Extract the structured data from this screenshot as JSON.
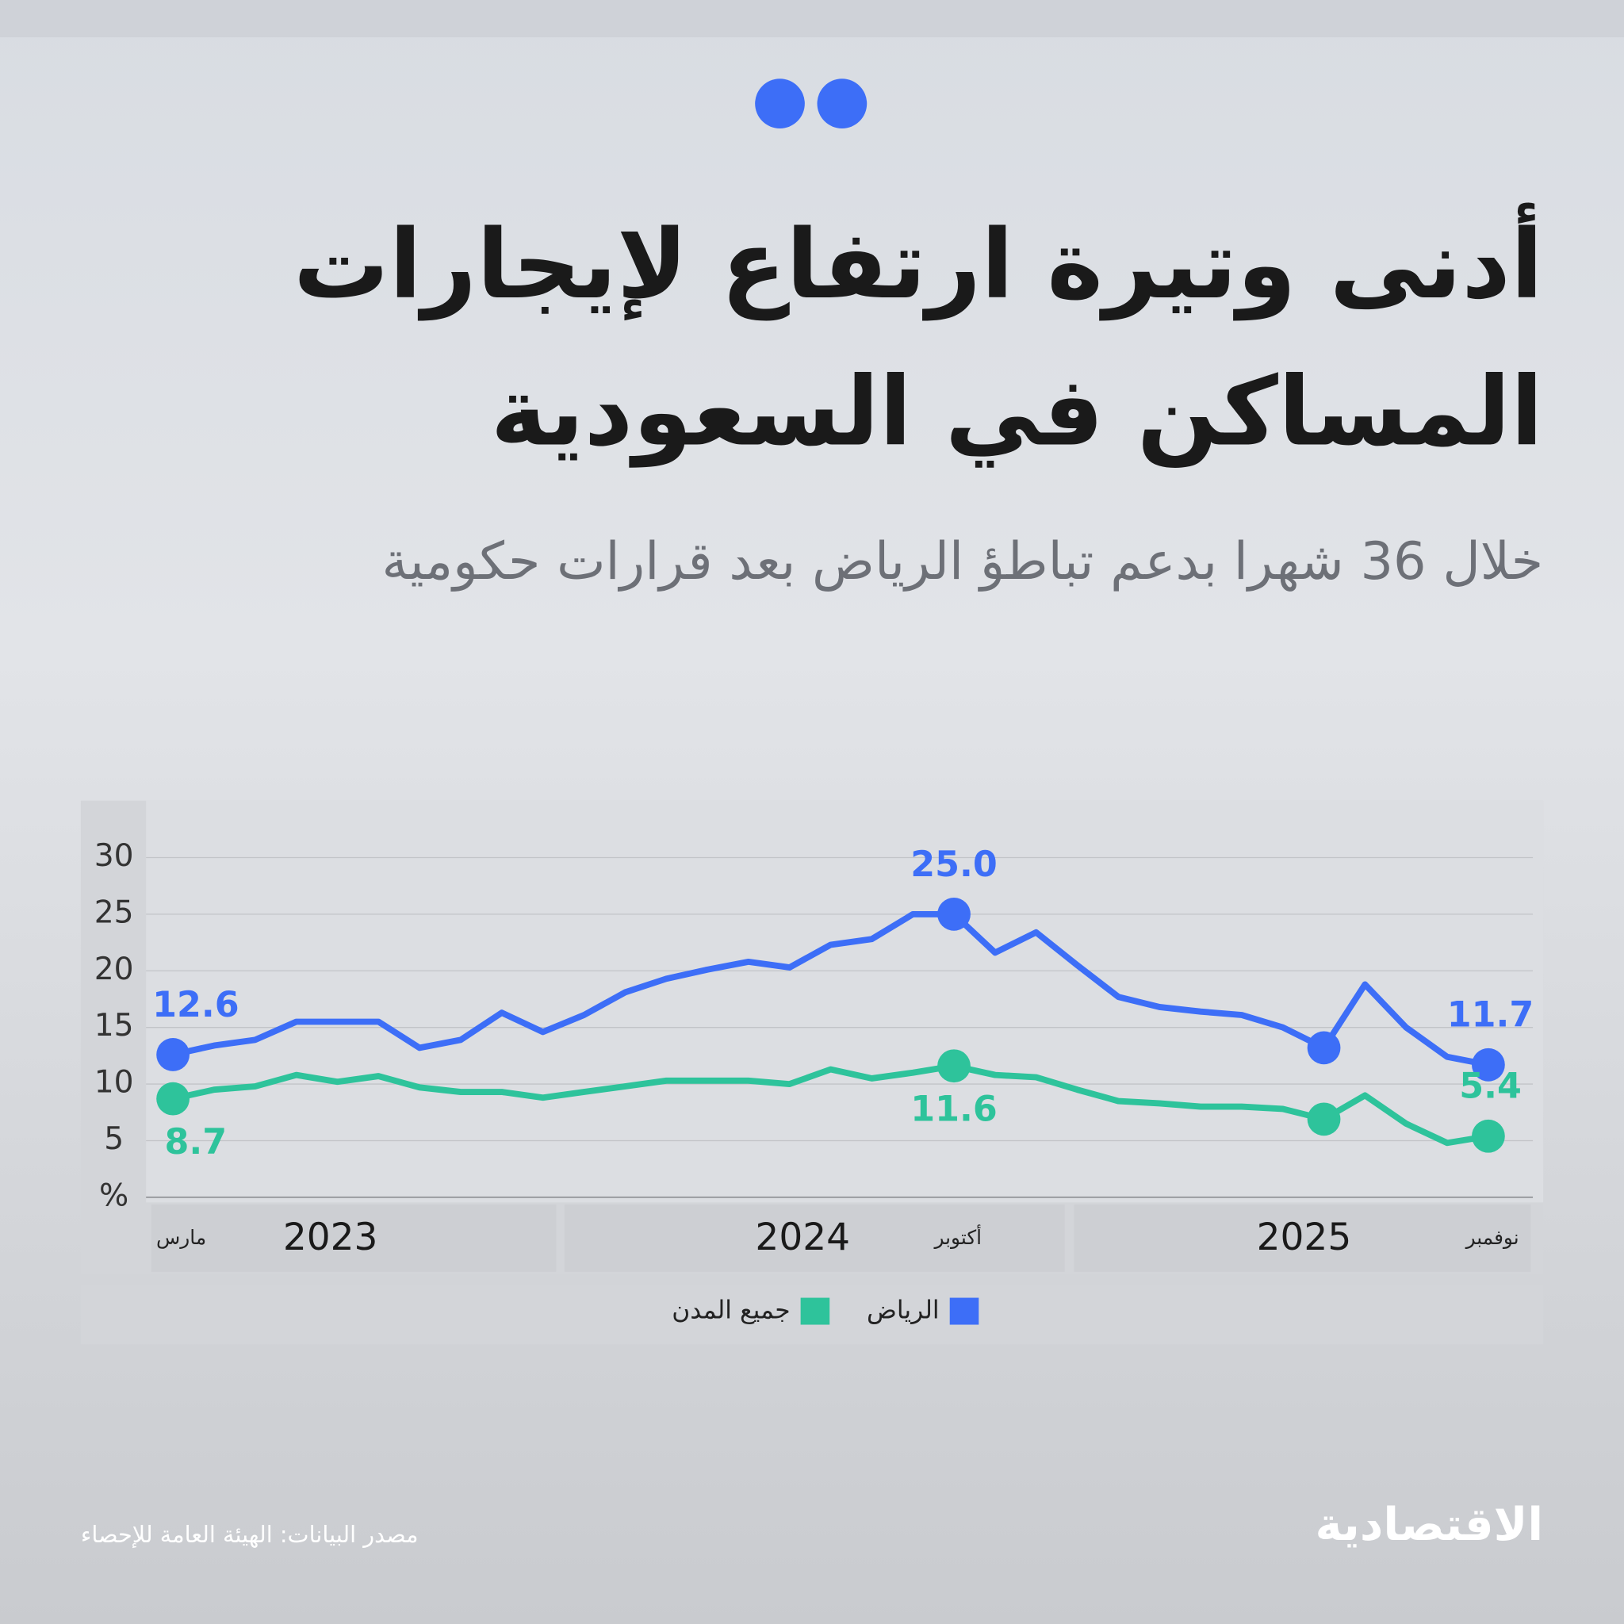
{
  "chart_data": {
    "type": "line",
    "title": [
      "أدنى وتيرة ارتفاع لإيجارات",
      "المساكن في السعودية"
    ],
    "subtitle": "خلال 36 شهرا بدعم تباطؤ الرياض بعد قرارات حكومية",
    "source": "مصدر البيانات: الهيئة العامة للإحصاء",
    "brand": "الاقتصادية",
    "categories": [
      "مارس",
      null,
      null,
      null,
      null,
      null,
      null,
      null,
      null,
      null,
      null,
      null,
      null,
      null,
      null,
      null,
      null,
      null,
      null,
      "أكتوبر",
      null,
      null,
      null,
      null,
      null,
      null,
      null,
      null,
      null,
      null,
      null,
      null,
      "نوفمبر"
    ],
    "year_labels": [
      "2023",
      "2024",
      "2025"
    ],
    "ylim": [
      0,
      30
    ],
    "yticks": [
      {
        "value": 0,
        "label": "%"
      },
      5,
      10,
      15,
      20,
      25,
      30
    ],
    "grid": true,
    "legend": "bottom",
    "series": [
      {
        "name": "الرياض",
        "color": "#3d6ef7",
        "values": [
          12.6,
          13.4,
          13.9,
          15.5,
          15.5,
          15.5,
          13.2,
          13.9,
          16.3,
          14.6,
          16.1,
          18.1,
          19.3,
          20.1,
          20.8,
          20.3,
          22.3,
          22.8,
          25.0,
          25.0,
          21.6,
          23.4,
          20.5,
          17.7,
          16.8,
          16.4,
          16.1,
          15.0,
          13.2,
          18.8,
          15.0,
          12.4,
          11.7
        ],
        "value_labels": [
          "12.6",
          null,
          null,
          null,
          null,
          null,
          null,
          null,
          null,
          null,
          null,
          null,
          null,
          null,
          null,
          null,
          null,
          null,
          null,
          "25.0",
          null,
          null,
          null,
          null,
          null,
          null,
          null,
          null,
          null,
          null,
          null,
          null,
          "11.7"
        ]
      },
      {
        "name": "جميع المدن",
        "color": "#2ec39b",
        "values": [
          8.7,
          9.5,
          9.8,
          10.8,
          10.2,
          10.7,
          9.7,
          9.3,
          9.3,
          8.8,
          9.3,
          9.8,
          10.3,
          10.3,
          10.3,
          10.0,
          11.3,
          10.5,
          11.0,
          11.6,
          10.8,
          10.6,
          9.5,
          8.5,
          8.3,
          8.0,
          8.0,
          7.8,
          6.9,
          9.0,
          6.5,
          4.8,
          5.4
        ],
        "value_labels": [
          "8.7",
          null,
          null,
          null,
          null,
          null,
          null,
          null,
          null,
          null,
          null,
          null,
          null,
          null,
          null,
          null,
          null,
          null,
          null,
          "11.6",
          null,
          null,
          null,
          null,
          null,
          null,
          null,
          null,
          null,
          null,
          null,
          null,
          "5.4"
        ]
      }
    ]
  }
}
